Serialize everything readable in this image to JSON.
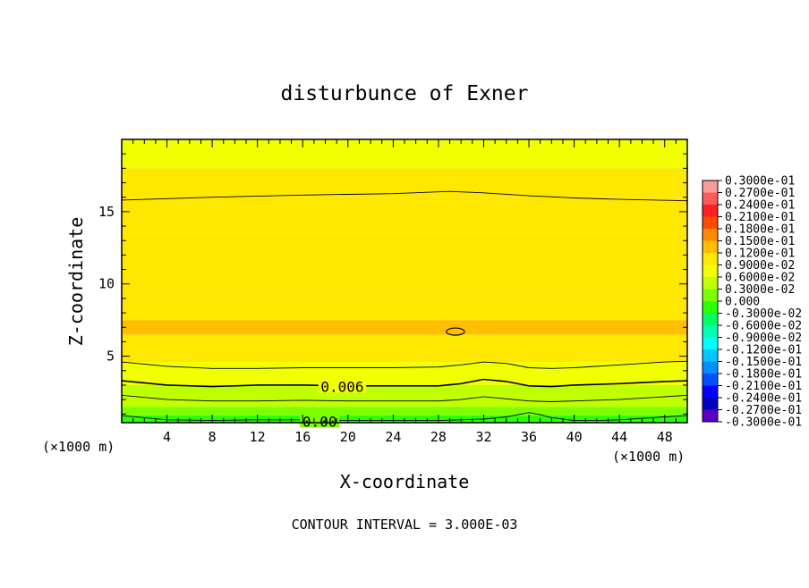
{
  "chart_data": {
    "type": "contour",
    "title": "disturbunce of Exner",
    "xlabel": "X-coordinate",
    "ylabel": "Z-coordinate",
    "x_unit_left": "(×1000 m)",
    "x_unit_right": "(×1000 m)",
    "xlim": [
      0,
      50
    ],
    "ylim": [
      0.4,
      20
    ],
    "x_ticks": [
      "4",
      "8",
      "12",
      "16",
      "20",
      "24",
      "28",
      "32",
      "36",
      "40",
      "44",
      "48"
    ],
    "y_ticks": [
      "5",
      "10",
      "15"
    ],
    "contour_interval_text": "CONTOUR INTERVAL = 3.000E-03",
    "contour_labels": [
      {
        "text": "0.006",
        "x": 19.5,
        "z": 2.9
      },
      {
        "text": "0.00",
        "x": 17.5,
        "z": 0.5
      }
    ],
    "contours": [
      {
        "level": 0.009,
        "x": [
          0,
          8,
          16,
          24,
          29,
          32,
          36,
          40,
          44,
          50
        ],
        "z": [
          15.8,
          16.0,
          16.15,
          16.25,
          16.4,
          16.3,
          16.1,
          15.95,
          15.85,
          15.75
        ]
      },
      {
        "level": 0.009,
        "x": [
          0,
          4,
          8,
          12,
          16,
          20,
          24,
          28,
          30,
          32,
          34,
          36,
          38,
          40,
          44,
          48,
          50
        ],
        "z": [
          4.6,
          4.3,
          4.15,
          4.15,
          4.2,
          4.2,
          4.2,
          4.25,
          4.4,
          4.6,
          4.5,
          4.2,
          4.15,
          4.2,
          4.4,
          4.6,
          4.65
        ]
      },
      {
        "level": 0.006,
        "x": [
          0,
          4,
          8,
          12,
          16,
          20,
          24,
          28,
          30,
          32,
          34,
          36,
          38,
          40,
          44,
          48,
          50
        ],
        "z": [
          3.3,
          3.0,
          2.9,
          3.0,
          3.0,
          2.95,
          2.95,
          2.95,
          3.1,
          3.4,
          3.25,
          2.95,
          2.9,
          3.0,
          3.1,
          3.25,
          3.3
        ]
      },
      {
        "level": 0.003,
        "x": [
          0,
          4,
          8,
          12,
          16,
          20,
          24,
          28,
          30,
          32,
          34,
          36,
          38,
          40,
          44,
          48,
          50
        ],
        "z": [
          2.3,
          2.0,
          1.9,
          1.9,
          1.95,
          1.9,
          1.9,
          1.9,
          2.0,
          2.2,
          2.05,
          1.9,
          1.85,
          1.9,
          2.0,
          2.2,
          2.3
        ]
      },
      {
        "level": 0.0,
        "x": [
          0,
          4,
          8,
          12,
          16,
          20,
          24,
          28,
          30,
          32,
          34,
          36,
          37,
          38,
          40,
          42,
          44,
          48,
          50
        ],
        "z": [
          0.9,
          0.6,
          0.55,
          0.6,
          0.6,
          0.55,
          0.55,
          0.55,
          0.6,
          0.65,
          0.8,
          1.1,
          0.95,
          0.75,
          0.55,
          0.55,
          0.6,
          0.8,
          0.9
        ]
      }
    ],
    "cells": {
      "x": [
        0,
        50
      ],
      "z": [
        0.4,
        0.9,
        1.5,
        2.3,
        3.0,
        3.8,
        4.6,
        5.5,
        6.5,
        7.5,
        9.0,
        11.0,
        13.5,
        16.0,
        18.0,
        20.0
      ],
      "values": [
        -0.001,
        0.0015,
        0.003,
        0.0045,
        0.006,
        0.0075,
        0.0095,
        0.0113,
        0.012,
        0.0113,
        0.0108,
        0.0103,
        0.0098,
        0.0092,
        0.0088
      ]
    },
    "small_closed_contour": {
      "x": 29.5,
      "z": 6.7,
      "rx": 0.8,
      "rz": 0.25
    },
    "colorbar": {
      "levels": [
        "0.3000e-01",
        "0.2700e-01",
        "0.2400e-01",
        "0.2100e-01",
        "0.1800e-01",
        "0.1500e-01",
        "0.1200e-01",
        "0.9000e-02",
        "0.6000e-02",
        "0.3000e-02",
        "0.000",
        "-0.3000e-02",
        "-0.6000e-02",
        "-0.9000e-02",
        "-0.1200e-01",
        "-0.1500e-01",
        "-0.1800e-01",
        "-0.2100e-01",
        "-0.2400e-01",
        "-0.2700e-01",
        "-0.3000e-01"
      ],
      "colors": [
        "#ff9a9a",
        "#ff5a5a",
        "#ff1f1f",
        "#ff4a00",
        "#ff8a00",
        "#ffbe00",
        "#ffe800",
        "#f2ff00",
        "#bfff00",
        "#7dff00",
        "#2cff00",
        "#00ff62",
        "#00ffb0",
        "#00ffff",
        "#00c8ff",
        "#0090ff",
        "#0050ff",
        "#0000ff",
        "#0000c0",
        "#5a00c0"
      ]
    }
  }
}
